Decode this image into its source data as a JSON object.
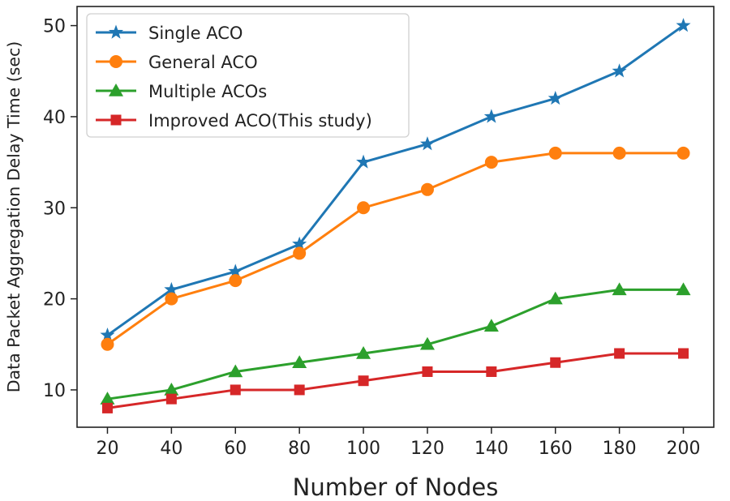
{
  "chart_data": {
    "type": "line",
    "title": "",
    "xlabel": "Number of Nodes",
    "ylabel": "Data Packet Aggregation Delay Time (sec)",
    "x": [
      20,
      40,
      60,
      80,
      100,
      120,
      140,
      160,
      180,
      200
    ],
    "xticks": [
      20,
      40,
      60,
      80,
      100,
      120,
      140,
      160,
      180,
      200
    ],
    "yticks": [
      10,
      20,
      30,
      40,
      50
    ],
    "xlim": [
      10.5,
      209.5
    ],
    "ylim": [
      5.9,
      52.1
    ],
    "grid": false,
    "legend_position": "top-left",
    "series": [
      {
        "name": "Single ACO",
        "color": "#1f77b4",
        "marker": "star",
        "values": [
          16,
          21,
          23,
          26,
          35,
          37,
          40,
          42,
          45,
          50
        ]
      },
      {
        "name": "General ACO",
        "color": "#ff7f0e",
        "marker": "circle",
        "values": [
          15,
          20,
          22,
          25,
          30,
          32,
          35,
          36,
          36,
          36
        ]
      },
      {
        "name": "Multiple ACOs",
        "color": "#2ca02c",
        "marker": "triangle",
        "values": [
          9,
          10,
          12,
          13,
          14,
          15,
          17,
          20,
          21,
          21
        ]
      },
      {
        "name": "Improved ACO(This study)",
        "color": "#d62728",
        "marker": "square",
        "values": [
          8,
          9,
          10,
          10,
          11,
          12,
          12,
          13,
          14,
          14
        ]
      }
    ]
  }
}
